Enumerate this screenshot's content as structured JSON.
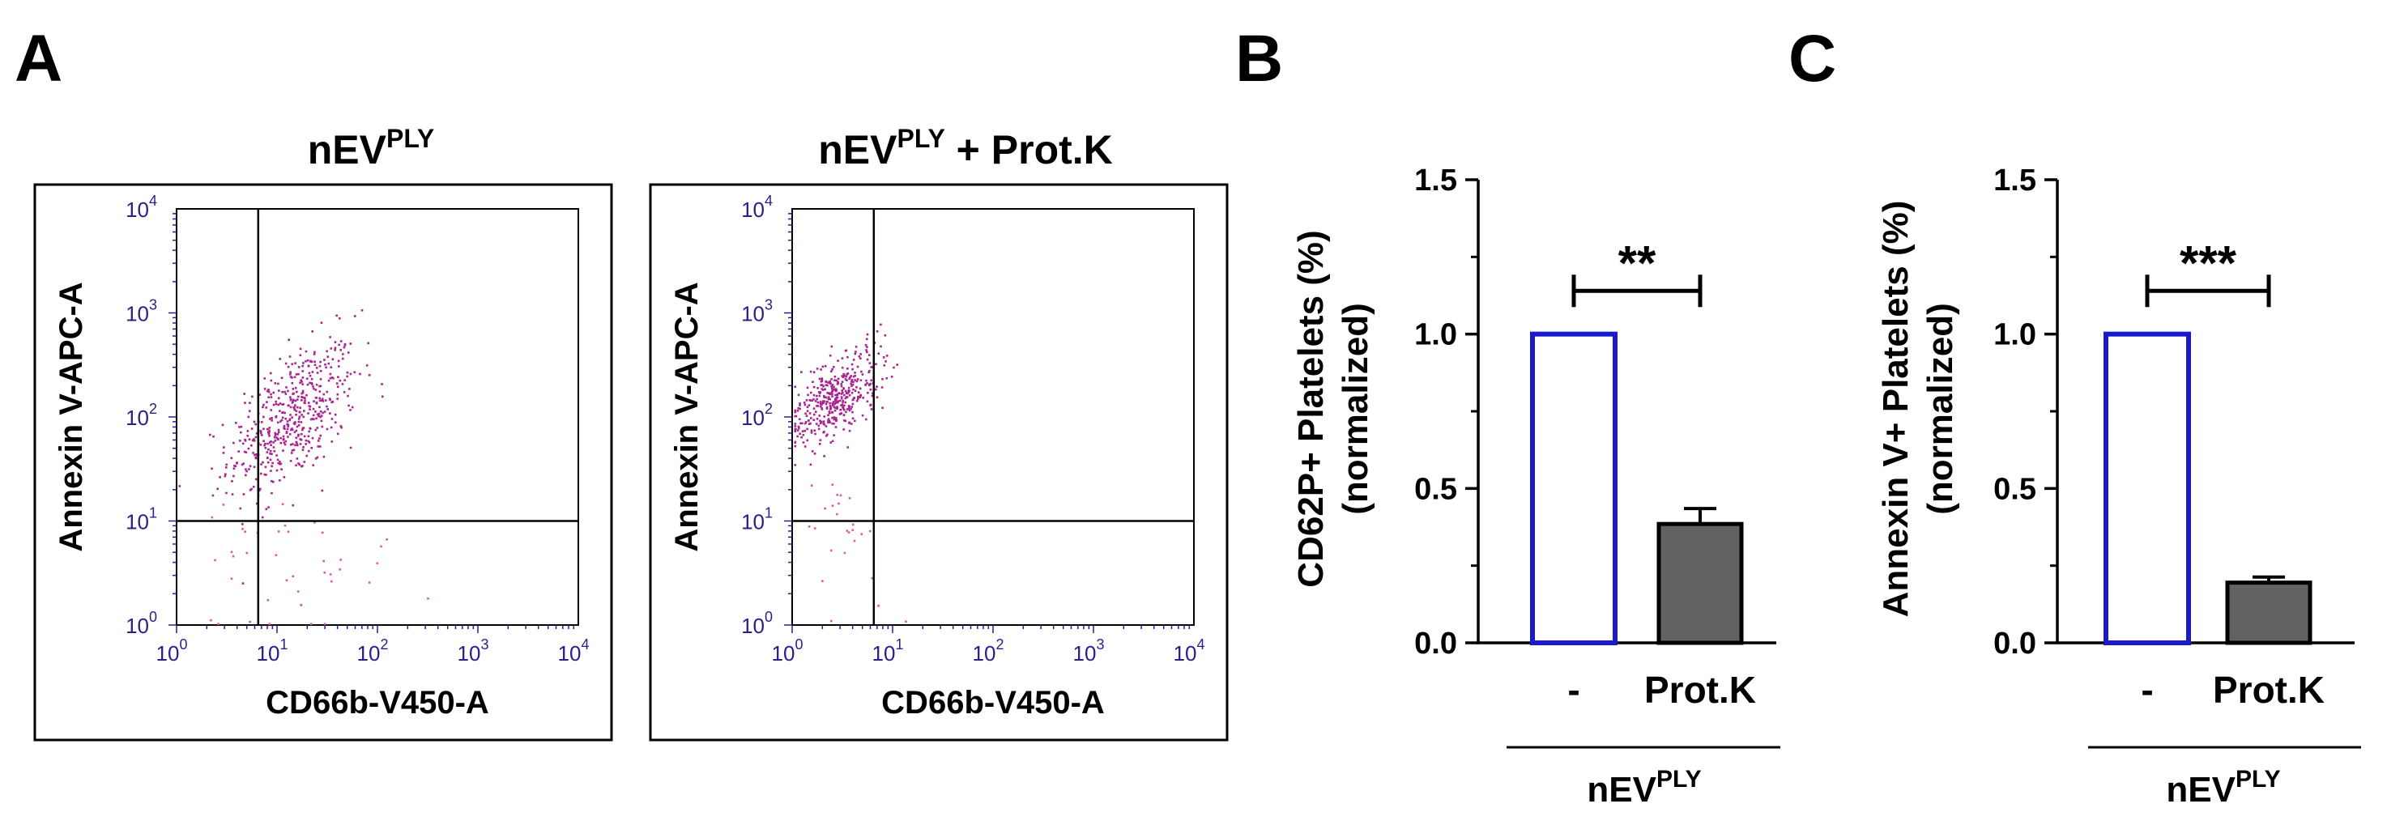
{
  "colors": {
    "flow_axis": "#2b1d8c",
    "flow_point": "#a8248f",
    "flow_point_light": "#e05a9a",
    "bar_ctrl_edge": "#1a1acd",
    "bar_ctrl_fill": "#ffffff",
    "bar_treat_fill": "#626262",
    "ink": "#000000"
  },
  "panels": {
    "A": {
      "letter": "A"
    },
    "B": {
      "letter": "B"
    },
    "C": {
      "letter": "C"
    }
  },
  "chart_data": [
    {
      "id": "flow-1",
      "type": "scatter",
      "title_main": "nEV",
      "title_sup": "PLY",
      "title_suffix": "",
      "xlabel": "CD66b-V450-A",
      "ylabel": "Annexin V-APC-A",
      "scale": "log",
      "xlim": [
        1,
        10000
      ],
      "ylim": [
        1,
        10000
      ],
      "tick_base": "10",
      "tick_exponents": [
        "0",
        "1",
        "2",
        "3",
        "4"
      ],
      "gate": {
        "x": 6.5,
        "y": 10
      },
      "population": {
        "center_x": 14,
        "center_y": 100,
        "spread_x": 0.32,
        "spread_y": 0.36,
        "n": 520,
        "outliers": 40
      }
    },
    {
      "id": "flow-2",
      "type": "scatter",
      "title_main": "nEV",
      "title_sup": "PLY",
      "title_suffix": " + Prot.K",
      "xlabel": "CD66b-V450-A",
      "ylabel": "Annexin V-APC-A",
      "scale": "log",
      "xlim": [
        1,
        10000
      ],
      "ylim": [
        1,
        10000
      ],
      "tick_base": "10",
      "tick_exponents": [
        "0",
        "1",
        "2",
        "3",
        "4"
      ],
      "gate": {
        "x": 6.5,
        "y": 10
      },
      "population": {
        "center_x": 2.6,
        "center_y": 150,
        "spread_x": 0.22,
        "spread_y": 0.22,
        "n": 420,
        "outliers": 25
      }
    },
    {
      "id": "bar-B",
      "type": "bar",
      "categories": [
        "-",
        "Prot.K"
      ],
      "values": [
        1.0,
        0.385
      ],
      "errors": [
        0,
        0.05
      ],
      "ylabel_line1": "CD62P+ Platelets (%)",
      "ylabel_line2": "(normalized)",
      "ylim": [
        0,
        1.5
      ],
      "yticks": [
        "0.0",
        "0.5",
        "1.0",
        "1.5"
      ],
      "significance": "**",
      "group_main": "nEV",
      "group_sup": "PLY"
    },
    {
      "id": "bar-C",
      "type": "bar",
      "categories": [
        "-",
        "Prot.K"
      ],
      "values": [
        1.0,
        0.195
      ],
      "errors": [
        0,
        0.018
      ],
      "ylabel_line1": "Annexin V+ Platelets (%)",
      "ylabel_line2": "(normalized)",
      "ylim": [
        0,
        1.5
      ],
      "yticks": [
        "0.0",
        "0.5",
        "1.0",
        "1.5"
      ],
      "significance": "***",
      "group_main": "nEV",
      "group_sup": "PLY"
    }
  ]
}
